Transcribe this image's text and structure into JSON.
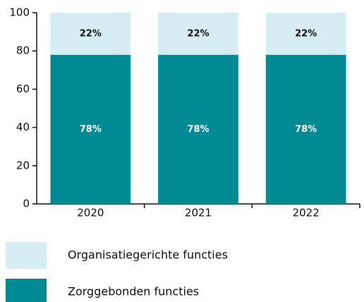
{
  "chart_data": {
    "type": "stacked_bar",
    "categories": [
      "2020",
      "2021",
      "2022"
    ],
    "series": [
      {
        "name": "Zorggebonden functies",
        "color": "#008b94",
        "values": [
          78,
          78,
          78
        ],
        "value_labels": [
          "78%",
          "78%",
          "78%"
        ]
      },
      {
        "name": "Organisatiegerichte functies",
        "color": "#d5edf3",
        "values": [
          22,
          22,
          22
        ],
        "value_labels": [
          "22%",
          "22%",
          "22%"
        ]
      }
    ],
    "ylim": [
      0,
      100
    ],
    "yticks": [
      0,
      20,
      40,
      60,
      80,
      100
    ],
    "grid": false
  }
}
